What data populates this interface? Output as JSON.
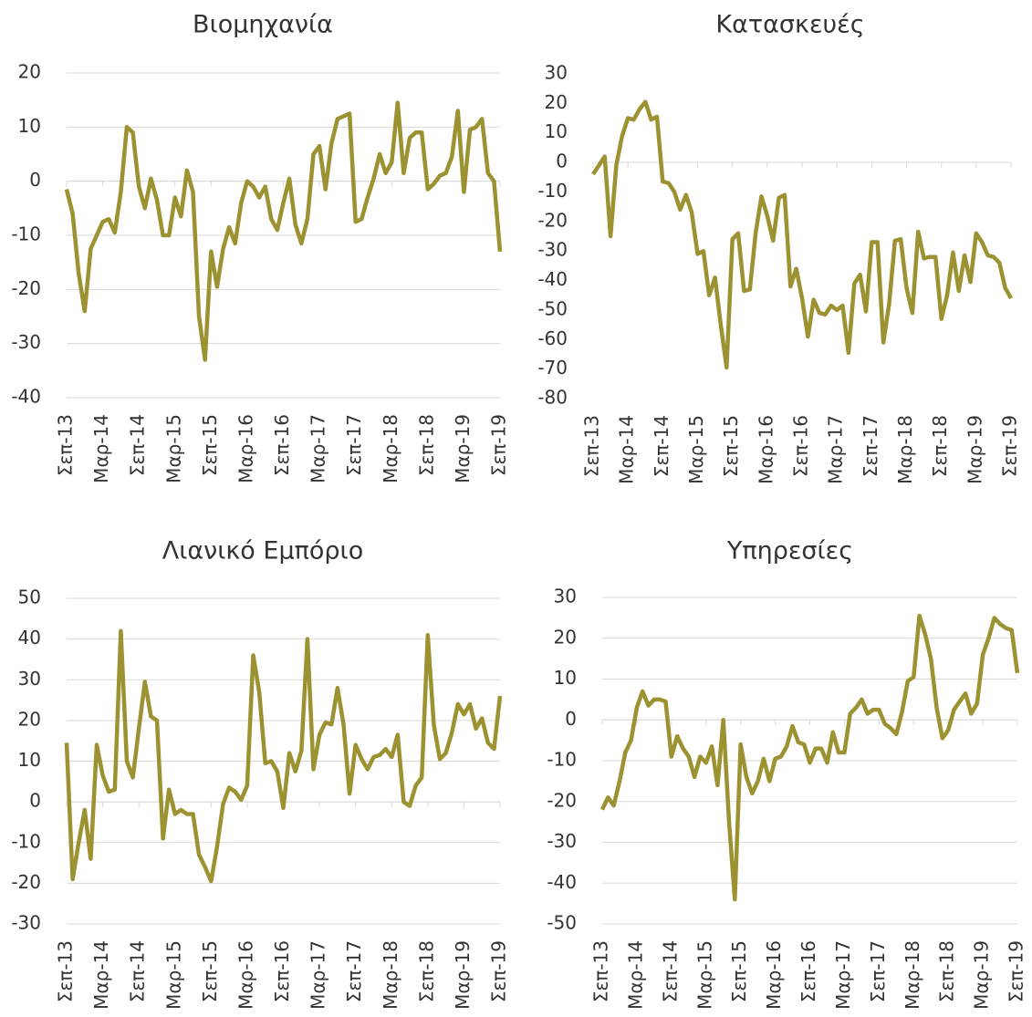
{
  "chart_data": [
    {
      "type": "line",
      "title": "Βιομηχανία",
      "categories": [
        "Σεπ-13",
        null,
        null,
        null,
        null,
        null,
        "Μαρ-14",
        null,
        null,
        null,
        null,
        null,
        "Σεπ-14",
        null,
        null,
        null,
        null,
        null,
        "Μαρ-15",
        null,
        null,
        null,
        null,
        null,
        "Σεπ-15",
        null,
        null,
        null,
        null,
        null,
        "Μαρ-16",
        null,
        null,
        null,
        null,
        null,
        "Σεπ-16",
        null,
        null,
        null,
        null,
        null,
        "Μαρ-17",
        null,
        null,
        null,
        null,
        null,
        "Σεπ-17",
        null,
        null,
        null,
        null,
        null,
        "Μαρ-18",
        null,
        null,
        null,
        null,
        null,
        "Σεπ-18",
        null,
        null,
        null,
        null,
        null,
        "Μαρ-19",
        null,
        null,
        null,
        null,
        null,
        "Σεπ-19"
      ],
      "values": [
        -1.5,
        -6,
        -17,
        -24,
        -12.5,
        -10,
        -7.5,
        -7,
        -9.5,
        -2,
        10,
        9,
        -1,
        -5,
        0.5,
        -3.5,
        -10,
        -10,
        -3,
        -6.5,
        2,
        -2,
        -25,
        -33,
        -13,
        -19.5,
        -12.5,
        -8.5,
        -11.5,
        -4,
        0,
        -1,
        -3,
        -1,
        -7,
        -9,
        -4,
        0.5,
        -8,
        -11.5,
        -7,
        5,
        6.5,
        -1.5,
        7,
        11.5,
        12,
        12.5,
        -7.5,
        -7,
        -3,
        0.5,
        5,
        1.5,
        3.5,
        14.5,
        1.5,
        8,
        9,
        9,
        -1.5,
        -0.5,
        1,
        1.5,
        4.5,
        13,
        -2,
        9.5,
        10,
        11.5,
        1.5,
        0,
        -13
      ],
      "color": "#9c9232",
      "ylim": [
        -40,
        20
      ],
      "yticks": [
        -40,
        -30,
        -20,
        -10,
        0,
        10,
        20
      ],
      "grid": true
    },
    {
      "type": "line",
      "title": "Κατασκευές",
      "categories": [
        "Σεπ-13",
        null,
        null,
        null,
        null,
        null,
        "Μαρ-14",
        null,
        null,
        null,
        null,
        null,
        "Σεπ-14",
        null,
        null,
        null,
        null,
        null,
        "Μαρ-15",
        null,
        null,
        null,
        null,
        null,
        "Σεπ-15",
        null,
        null,
        null,
        null,
        null,
        "Μαρ-16",
        null,
        null,
        null,
        null,
        null,
        "Σεπ-16",
        null,
        null,
        null,
        null,
        null,
        "Μαρ-17",
        null,
        null,
        null,
        null,
        null,
        "Σεπ-17",
        null,
        null,
        null,
        null,
        null,
        "Μαρ-18",
        null,
        null,
        null,
        null,
        null,
        "Σεπ-18",
        null,
        null,
        null,
        null,
        null,
        "Μαρ-19",
        null,
        null,
        null,
        null,
        null,
        "Σεπ-19"
      ],
      "values": [
        -4,
        -1,
        2,
        -25,
        -1,
        9,
        15,
        14.5,
        18,
        20.5,
        14.5,
        15.5,
        -6.5,
        -7,
        -10,
        -16,
        -11,
        -17,
        -31,
        -30,
        -45,
        -39,
        -55,
        -69.5,
        -26,
        -24,
        -43.5,
        -43,
        -24,
        -11.5,
        -18,
        -26.5,
        -12,
        -11,
        -42,
        -36,
        -46,
        -59,
        -46.5,
        -51,
        -51.5,
        -48.5,
        -50,
        -48.5,
        -64.5,
        -41,
        -38,
        -50.5,
        -27,
        -27,
        -61,
        -48,
        -26.5,
        -26,
        -42.5,
        -51,
        -23.5,
        -32.5,
        -32,
        -32,
        -53,
        -45,
        -30.5,
        -43.5,
        -31.5,
        -40.5,
        -24,
        -27,
        -31.5,
        -32,
        -34,
        -42.5,
        -46
      ],
      "color": "#9c9232",
      "ylim": [
        -80,
        30
      ],
      "yticks": [
        -80,
        -70,
        -60,
        -50,
        -40,
        -30,
        -20,
        -10,
        0,
        10,
        20,
        30
      ],
      "grid": false
    },
    {
      "type": "line",
      "title": "Λιανικό Εμπόριο",
      "categories": [
        "Σεπ-13",
        null,
        null,
        null,
        null,
        null,
        "Μαρ-14",
        null,
        null,
        null,
        null,
        null,
        "Σεπ-14",
        null,
        null,
        null,
        null,
        null,
        "Μαρ-15",
        null,
        null,
        null,
        null,
        null,
        "Σεπ-15",
        null,
        null,
        null,
        null,
        null,
        "Μαρ-16",
        null,
        null,
        null,
        null,
        null,
        "Σεπ-16",
        null,
        null,
        null,
        null,
        null,
        "Μαρ-17",
        null,
        null,
        null,
        null,
        null,
        "Σεπ-17",
        null,
        null,
        null,
        null,
        null,
        "Μαρ-18",
        null,
        null,
        null,
        null,
        null,
        "Σεπ-18",
        null,
        null,
        null,
        null,
        null,
        "Μαρ-19",
        null,
        null,
        null,
        null,
        null,
        "Σεπ-19"
      ],
      "values": [
        14.5,
        -19,
        -10,
        -2,
        -14,
        14,
        6.5,
        2.5,
        3,
        42,
        10,
        6,
        18,
        29.5,
        21,
        20,
        -9,
        3,
        -3,
        -2,
        -3,
        -3,
        -13,
        -16,
        -19.5,
        -11,
        -0.5,
        3.5,
        2.5,
        0.5,
        4,
        36,
        27,
        9.5,
        10,
        7.5,
        -1.5,
        12,
        7.5,
        12.5,
        40,
        8,
        16.5,
        19.5,
        19,
        28,
        19,
        2,
        14,
        10.5,
        8,
        11,
        11.5,
        13,
        11,
        16.5,
        0,
        -1,
        4,
        6,
        41,
        19,
        10.5,
        12,
        17,
        24,
        21.5,
        24,
        18,
        20.5,
        14.5,
        13,
        26
      ],
      "color": "#9c9232",
      "ylim": [
        -30,
        50
      ],
      "yticks": [
        -30,
        -20,
        -10,
        0,
        10,
        20,
        30,
        40,
        50
      ],
      "grid": true
    },
    {
      "type": "line",
      "title": "Υπηρεσίες",
      "categories": [
        "Σεπ-13",
        null,
        null,
        null,
        null,
        null,
        "Μαρ-14",
        null,
        null,
        null,
        null,
        null,
        "Σεπ-14",
        null,
        null,
        null,
        null,
        null,
        "Μαρ-15",
        null,
        null,
        null,
        null,
        null,
        "Σεπ-15",
        null,
        null,
        null,
        null,
        null,
        "Μαρ-16",
        null,
        null,
        null,
        null,
        null,
        "Σεπ-16",
        null,
        null,
        null,
        null,
        null,
        "Μαρ-17",
        null,
        null,
        null,
        null,
        null,
        "Σεπ-17",
        null,
        null,
        null,
        null,
        null,
        "Μαρ-18",
        null,
        null,
        null,
        null,
        null,
        "Σεπ-18",
        null,
        null,
        null,
        null,
        null,
        "Μαρ-19",
        null,
        null,
        null,
        null,
        null,
        "Σεπ-19"
      ],
      "values": [
        -22,
        -19,
        -21,
        -15,
        -8,
        -5,
        3,
        7,
        3.5,
        5,
        5,
        4.5,
        -9,
        -4,
        -7,
        -9,
        -14,
        -9,
        -10.5,
        -6.5,
        -16,
        0,
        -25,
        -44,
        -6,
        -14,
        -18,
        -15,
        -9.5,
        -15,
        -9.5,
        -9,
        -6.5,
        -1.5,
        -5.5,
        -6,
        -10.5,
        -7,
        -7,
        -10.5,
        -3,
        -8,
        -8,
        1.5,
        3,
        5,
        1.5,
        2.5,
        2.5,
        -1,
        -2,
        -3.5,
        2,
        9.5,
        10.5,
        25.5,
        21,
        15,
        3,
        -4.5,
        -2.5,
        2.5,
        4.5,
        6.5,
        1.5,
        4,
        16,
        20,
        25,
        23.5,
        22.5,
        22,
        11.5
      ],
      "color": "#9c9232",
      "ylim": [
        -50,
        30
      ],
      "yticks": [
        -50,
        -40,
        -30,
        -20,
        -10,
        0,
        10,
        20,
        30
      ],
      "grid": true
    }
  ]
}
